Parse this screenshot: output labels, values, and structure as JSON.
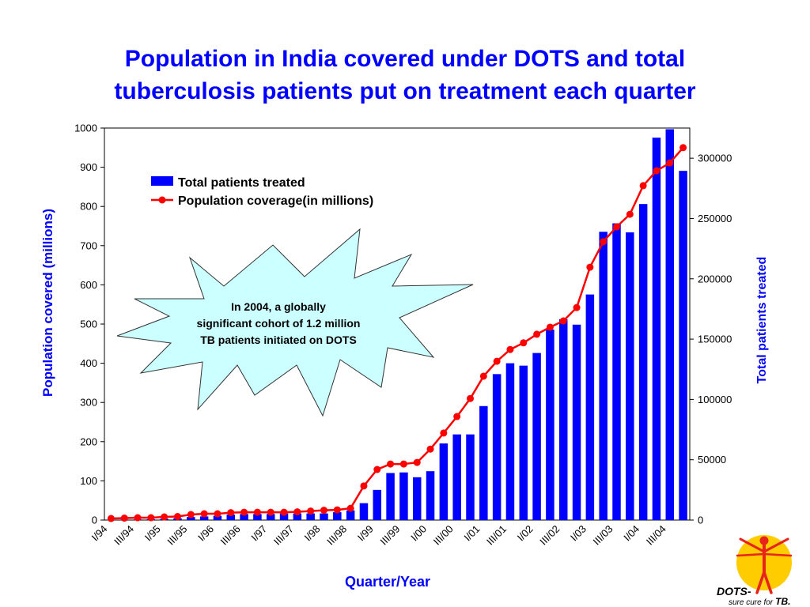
{
  "chart_data": {
    "type": "bar",
    "title": [
      "Population in India covered under DOTS and total",
      "tuberculosis patients put on treatment each quarter"
    ],
    "xlabel": "Quarter/Year",
    "ylabel": "Population covered (millions)",
    "y2label": "Total patients treated",
    "categories": [
      "I/94",
      "",
      "III/94",
      "",
      "I/95",
      "",
      "III/95",
      "",
      "I/96",
      "",
      "III/96",
      "",
      "I/97",
      "",
      "III/97",
      "",
      "I/98",
      "",
      "III/98",
      "",
      "I/99",
      "",
      "III/99",
      "",
      "I/00",
      "",
      "III/00",
      "",
      "I/01",
      "",
      "III/01",
      "",
      "I/02",
      "",
      "III/02",
      "",
      "I/03",
      "",
      "III/03",
      "",
      "I/04",
      "",
      "III/04",
      ""
    ],
    "series": [
      {
        "name": "Total patients treated",
        "type": "bar",
        "y_axis": "right",
        "color": "#0000FF",
        "values": [
          300,
          400,
          500,
          700,
          1000,
          1500,
          2500,
          3000,
          3500,
          4500,
          5000,
          5000,
          5000,
          5500,
          5500,
          5500,
          5500,
          6500,
          8000,
          14000,
          25000,
          39000,
          39500,
          35500,
          40500,
          63500,
          71000,
          71000,
          94500,
          121000,
          130000,
          128000,
          138500,
          158000,
          166500,
          162000,
          187000,
          239000,
          246000,
          238500,
          262000,
          317000,
          324000,
          289500
        ]
      },
      {
        "name": "Population coverage(in millions)",
        "type": "line",
        "y_axis": "left",
        "marker": "circle",
        "color": "#FF0000",
        "values": [
          4,
          5,
          6,
          6,
          8,
          9,
          14,
          16,
          16,
          19,
          20,
          20,
          20,
          20,
          21,
          23,
          25,
          26,
          30,
          87,
          129,
          143,
          143,
          147,
          181,
          222,
          264,
          310,
          367,
          405,
          435,
          452,
          474,
          492,
          508,
          542,
          645,
          710,
          748,
          780,
          853,
          891,
          911,
          950
        ]
      }
    ],
    "ylim": [
      0,
      1000
    ],
    "yticks": [
      0,
      100,
      200,
      300,
      400,
      500,
      600,
      700,
      800,
      900,
      1000
    ],
    "y2lim": [
      0,
      325000
    ],
    "y2ticks": [
      0,
      50000,
      100000,
      150000,
      200000,
      250000,
      300000
    ],
    "grid": false,
    "legend": "top-left"
  },
  "callout": {
    "fill": "#CCFFFF",
    "lines": [
      "In 2004, a globally",
      "significant cohort of 1.2 million",
      "TB patients initiated on DOTS"
    ]
  },
  "logo": {
    "icon": "dots-human-figure-icon",
    "circle_color": "#FFCC00",
    "figure_color": "#E8231C",
    "name": "DOTS-",
    "tagline": "sure cure for",
    "tagline_emphasis": "TB."
  },
  "colors": {
    "title": "#0000FF",
    "axis_titles": "#0000FF"
  }
}
